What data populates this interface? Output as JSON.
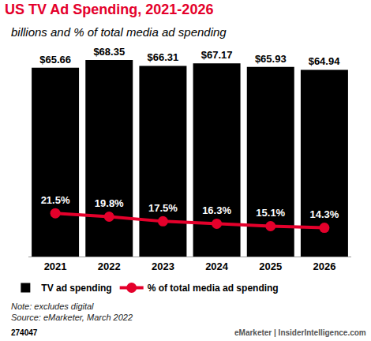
{
  "chart_data": {
    "type": "bar",
    "title": "US TV Ad Spending, 2021-2026",
    "subtitle": "billions and % of total media ad spending",
    "categories": [
      "2021",
      "2022",
      "2023",
      "2024",
      "2025",
      "2026"
    ],
    "series": [
      {
        "name": "TV ad spending",
        "type": "bar",
        "color": "#000000",
        "values": [
          65.66,
          68.35,
          66.31,
          67.17,
          65.93,
          64.94
        ],
        "value_labels": [
          "$65.66",
          "$68.35",
          "$66.31",
          "$67.17",
          "$65.93",
          "$64.94"
        ]
      },
      {
        "name": "% of total media ad spending",
        "type": "line",
        "axis": "y2",
        "color": "#e4002b",
        "marker": "circle",
        "values": [
          21.5,
          19.8,
          17.5,
          16.3,
          15.1,
          14.3
        ],
        "value_labels": [
          "21.5%",
          "19.8%",
          "17.5%",
          "16.3%",
          "15.1%",
          "14.3%"
        ]
      }
    ],
    "ylim": [
      0,
      70
    ],
    "yticks": [
      0,
      70
    ],
    "y2lim": [
      0,
      100
    ],
    "y2ticks": [
      0,
      100
    ],
    "grid": false,
    "legend": "bottom",
    "data_labels": true,
    "tick_labels": "x",
    "annotations": [
      {
        "text": "Note: excludes digital"
      },
      {
        "text": "Source: eMarketer, March 2022"
      },
      {
        "text": "274047"
      },
      {
        "text": "eMarketer | InsiderIntelligence.com"
      }
    ]
  }
}
